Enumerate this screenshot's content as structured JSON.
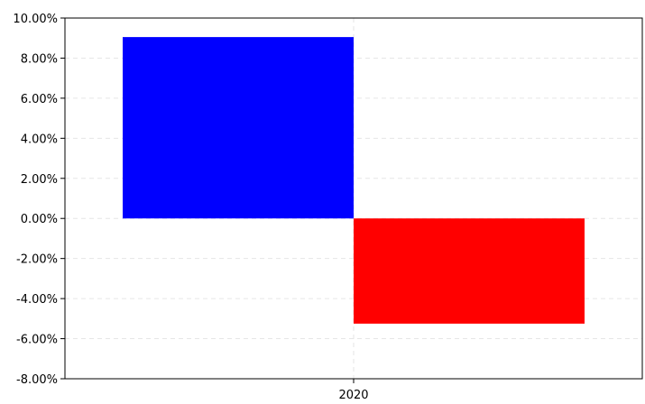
{
  "chart_data": {
    "type": "bar",
    "categories": [
      "2020"
    ],
    "series": [
      {
        "values": [
          9.05
        ],
        "color": "#0000ff"
      },
      {
        "values": [
          -5.25
        ],
        "color": "#ff0000"
      }
    ],
    "ylim": [
      -8,
      10
    ],
    "yticks": [
      10,
      8,
      6,
      4,
      2,
      0,
      -2,
      -4,
      -6,
      -8
    ],
    "ytick_labels": [
      "10.00%",
      "8.00%",
      "6.00%",
      "4.00%",
      "2.00%",
      "0.00%",
      "-2.00%",
      "-4.00%",
      "-6.00%",
      "-8.00%"
    ],
    "xtick_labels": [
      "2020"
    ],
    "grid": true,
    "title": "",
    "xlabel": "",
    "ylabel": ""
  }
}
